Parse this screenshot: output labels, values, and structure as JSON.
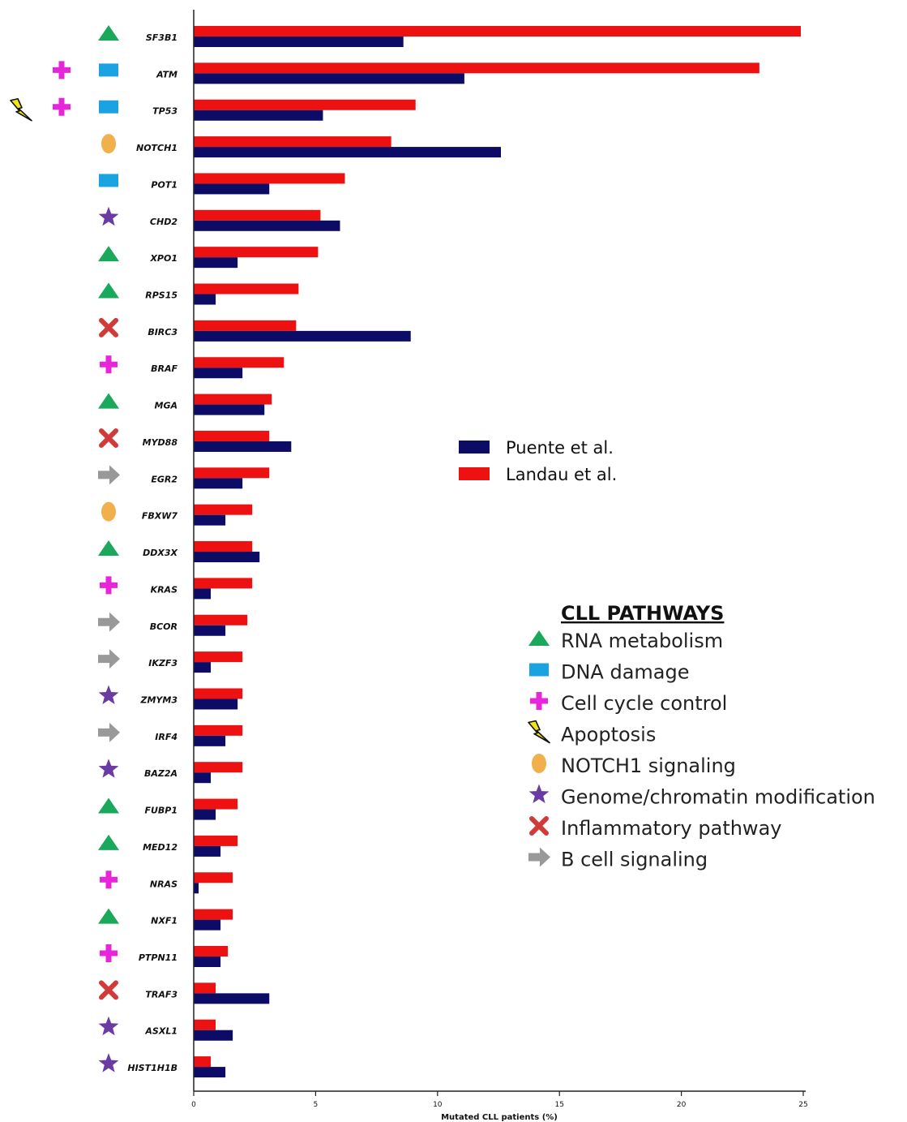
{
  "chart_data": {
    "type": "bar",
    "orientation": "horizontal",
    "xlabel": "Mutated CLL patients (%)",
    "xlim": [
      0,
      25
    ],
    "xticks": [
      "0",
      "5",
      "10",
      "15",
      "20",
      "25"
    ],
    "categories": [
      "SF3B1",
      "ATM",
      "TP53",
      "NOTCH1",
      "POT1",
      "CHD2",
      "XPO1",
      "RPS15",
      "BIRC3",
      "BRAF",
      "MGA",
      "MYD88",
      "EGR2",
      "FBXW7",
      "DDX3X",
      "KRAS",
      "BCOR",
      "IKZF3",
      "ZMYM3",
      "IRF4",
      "BAZ2A",
      "FUBP1",
      "MED12",
      "NRAS",
      "NXF1",
      "PTPN11",
      "TRAF3",
      "ASXL1",
      "HIST1H1B"
    ],
    "pathway_icons": [
      [
        "triangle"
      ],
      [
        "plus",
        "square"
      ],
      [
        "bolt",
        "plus",
        "square"
      ],
      [
        "oval"
      ],
      [
        "square"
      ],
      [
        "star"
      ],
      [
        "triangle"
      ],
      [
        "triangle"
      ],
      [
        "cross"
      ],
      [
        "plus"
      ],
      [
        "triangle"
      ],
      [
        "cross"
      ],
      [
        "arrow"
      ],
      [
        "oval"
      ],
      [
        "triangle"
      ],
      [
        "plus"
      ],
      [
        "arrow"
      ],
      [
        "arrow"
      ],
      [
        "star"
      ],
      [
        "arrow"
      ],
      [
        "star"
      ],
      [
        "triangle"
      ],
      [
        "triangle"
      ],
      [
        "plus"
      ],
      [
        "triangle"
      ],
      [
        "plus"
      ],
      [
        "cross"
      ],
      [
        "star"
      ],
      [
        "star"
      ]
    ],
    "series": [
      {
        "name": "Landau et al.",
        "color": "#ee1111",
        "values": [
          24.9,
          23.2,
          9.1,
          8.1,
          6.2,
          5.2,
          5.1,
          4.3,
          4.2,
          3.7,
          3.2,
          3.1,
          3.1,
          2.4,
          2.4,
          2.4,
          2.2,
          2.0,
          2.0,
          2.0,
          2.0,
          1.8,
          1.8,
          1.6,
          1.6,
          1.4,
          0.9,
          0.9,
          0.7
        ]
      },
      {
        "name": "Puente et al.",
        "color": "#0c0c66",
        "values": [
          8.6,
          11.1,
          5.3,
          12.6,
          3.1,
          6.0,
          1.8,
          0.9,
          8.9,
          2.0,
          2.9,
          4.0,
          2.0,
          1.3,
          2.7,
          0.7,
          1.3,
          0.7,
          1.8,
          1.3,
          0.7,
          0.9,
          1.1,
          0.2,
          1.1,
          1.1,
          3.1,
          1.6,
          1.3
        ]
      }
    ],
    "legend": [
      {
        "label": "Puente et al.",
        "color": "#0c0c66"
      },
      {
        "label": "Landau et al.",
        "color": "#ee1111"
      }
    ],
    "legend_placement": "center-right"
  },
  "pathways": {
    "title": "CLL PATHWAYS",
    "items": [
      {
        "icon": "triangle",
        "label": "RNA metabolism"
      },
      {
        "icon": "square",
        "label": "DNA damage"
      },
      {
        "icon": "plus",
        "label": "Cell cycle control"
      },
      {
        "icon": "bolt",
        "label": "Apoptosis"
      },
      {
        "icon": "oval",
        "label": "NOTCH1 signaling"
      },
      {
        "icon": "star",
        "label": "Genome/chromatin modification"
      },
      {
        "icon": "cross",
        "label": "Inflammatory pathway"
      },
      {
        "icon": "arrow",
        "label": "B cell signaling"
      }
    ]
  },
  "icon_colors": {
    "triangle": "#1aa85a",
    "square": "#1aa3e0",
    "plus": "#e626d8",
    "bolt": "#f2e418",
    "oval": "#f2b04c",
    "star": "#6a3ba3",
    "cross": "#d23a3a",
    "arrow": "#999999"
  }
}
